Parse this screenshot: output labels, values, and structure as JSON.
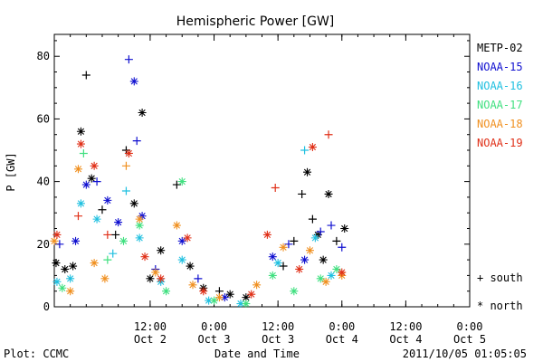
{
  "chart_data": {
    "type": "scatter",
    "title": "Hemispheric Power [GW]",
    "xlabel": "Date and Time",
    "ylabel": "P [GW]",
    "xlim": [
      "2011-10-01T18:00",
      "2011-10-05T00:00"
    ],
    "ylim": [
      0,
      87
    ],
    "yticks": [
      0,
      20,
      40,
      60,
      80
    ],
    "xticks": [
      {
        "time": "2011-10-02T12:00",
        "hour": "12:00",
        "date": "Oct 2"
      },
      {
        "time": "2011-10-03T00:00",
        "hour": "0:00",
        "date": "Oct 3"
      },
      {
        "time": "2011-10-03T12:00",
        "hour": "12:00",
        "date": "Oct 3"
      },
      {
        "time": "2011-10-04T00:00",
        "hour": "0:00",
        "date": "Oct 4"
      },
      {
        "time": "2011-10-04T12:00",
        "hour": "12:00",
        "date": "Oct 4"
      },
      {
        "time": "2011-10-05T00:00",
        "hour": "0:00",
        "date": "Oct 5"
      }
    ],
    "grid": false,
    "legend_position": "right",
    "marker_legend": {
      "south_symbol": "+",
      "south_label": "south",
      "north_symbol": "*",
      "north_label": "north"
    },
    "series": [
      {
        "name": "METP-02",
        "color": "#000000",
        "points": [
          {
            "t": "2011-10-01T18:20",
            "p": 14,
            "m": "north"
          },
          {
            "t": "2011-10-01T20:00",
            "p": 12,
            "m": "north"
          },
          {
            "t": "2011-10-01T21:30",
            "p": 13,
            "m": "north"
          },
          {
            "t": "2011-10-01T23:00",
            "p": 56,
            "m": "north"
          },
          {
            "t": "2011-10-02T00:00",
            "p": 74,
            "m": "south"
          },
          {
            "t": "2011-10-02T01:00",
            "p": 41,
            "m": "north"
          },
          {
            "t": "2011-10-02T03:00",
            "p": 31,
            "m": "south"
          },
          {
            "t": "2011-10-02T05:30",
            "p": 23,
            "m": "south"
          },
          {
            "t": "2011-10-02T07:30",
            "p": 50,
            "m": "south"
          },
          {
            "t": "2011-10-02T09:00",
            "p": 33,
            "m": "north"
          },
          {
            "t": "2011-10-02T10:30",
            "p": 62,
            "m": "north"
          },
          {
            "t": "2011-10-02T12:00",
            "p": 9,
            "m": "north"
          },
          {
            "t": "2011-10-02T14:00",
            "p": 18,
            "m": "north"
          },
          {
            "t": "2011-10-02T17:00",
            "p": 39,
            "m": "south"
          },
          {
            "t": "2011-10-02T19:30",
            "p": 13,
            "m": "north"
          },
          {
            "t": "2011-10-02T22:00",
            "p": 6,
            "m": "north"
          },
          {
            "t": "2011-10-03T01:00",
            "p": 5,
            "m": "south"
          },
          {
            "t": "2011-10-03T03:00",
            "p": 4,
            "m": "north"
          },
          {
            "t": "2011-10-03T06:00",
            "p": 3,
            "m": "north"
          },
          {
            "t": "2011-10-03T13:00",
            "p": 13,
            "m": "south"
          },
          {
            "t": "2011-10-03T15:00",
            "p": 21,
            "m": "south"
          },
          {
            "t": "2011-10-03T16:30",
            "p": 36,
            "m": "south"
          },
          {
            "t": "2011-10-03T17:30",
            "p": 43,
            "m": "north"
          },
          {
            "t": "2011-10-03T18:30",
            "p": 28,
            "m": "south"
          },
          {
            "t": "2011-10-03T19:30",
            "p": 23,
            "m": "north"
          },
          {
            "t": "2011-10-03T20:30",
            "p": 15,
            "m": "north"
          },
          {
            "t": "2011-10-03T21:30",
            "p": 36,
            "m": "north"
          },
          {
            "t": "2011-10-03T23:00",
            "p": 21,
            "m": "south"
          },
          {
            "t": "2011-10-04T00:30",
            "p": 25,
            "m": "north"
          }
        ]
      },
      {
        "name": "NOAA-15",
        "color": "#1010d0",
        "points": [
          {
            "t": "2011-10-01T19:00",
            "p": 20,
            "m": "south"
          },
          {
            "t": "2011-10-01T22:00",
            "p": 21,
            "m": "north"
          },
          {
            "t": "2011-10-02T00:00",
            "p": 39,
            "m": "north"
          },
          {
            "t": "2011-10-02T02:00",
            "p": 40,
            "m": "south"
          },
          {
            "t": "2011-10-02T04:00",
            "p": 34,
            "m": "north"
          },
          {
            "t": "2011-10-02T06:00",
            "p": 27,
            "m": "north"
          },
          {
            "t": "2011-10-02T08:00",
            "p": 79,
            "m": "south"
          },
          {
            "t": "2011-10-02T09:00",
            "p": 72,
            "m": "north"
          },
          {
            "t": "2011-10-02T09:30",
            "p": 53,
            "m": "south"
          },
          {
            "t": "2011-10-02T10:30",
            "p": 29,
            "m": "north"
          },
          {
            "t": "2011-10-02T13:00",
            "p": 12,
            "m": "south"
          },
          {
            "t": "2011-10-02T18:00",
            "p": 21,
            "m": "north"
          },
          {
            "t": "2011-10-02T21:00",
            "p": 9,
            "m": "south"
          },
          {
            "t": "2011-10-03T02:00",
            "p": 3,
            "m": "north"
          },
          {
            "t": "2011-10-03T11:00",
            "p": 16,
            "m": "north"
          },
          {
            "t": "2011-10-03T14:00",
            "p": 20,
            "m": "south"
          },
          {
            "t": "2011-10-03T17:00",
            "p": 15,
            "m": "north"
          },
          {
            "t": "2011-10-03T20:00",
            "p": 24,
            "m": "south"
          },
          {
            "t": "2011-10-03T22:00",
            "p": 26,
            "m": "south"
          },
          {
            "t": "2011-10-04T00:00",
            "p": 19,
            "m": "south"
          }
        ]
      },
      {
        "name": "NOAA-16",
        "color": "#20c0e0",
        "points": [
          {
            "t": "2011-10-01T18:30",
            "p": 8,
            "m": "north"
          },
          {
            "t": "2011-10-01T21:00",
            "p": 9,
            "m": "north"
          },
          {
            "t": "2011-10-01T23:00",
            "p": 33,
            "m": "north"
          },
          {
            "t": "2011-10-02T02:00",
            "p": 28,
            "m": "north"
          },
          {
            "t": "2011-10-02T05:00",
            "p": 17,
            "m": "south"
          },
          {
            "t": "2011-10-02T07:30",
            "p": 37,
            "m": "south"
          },
          {
            "t": "2011-10-02T10:00",
            "p": 22,
            "m": "north"
          },
          {
            "t": "2011-10-02T14:00",
            "p": 8,
            "m": "north"
          },
          {
            "t": "2011-10-02T18:00",
            "p": 15,
            "m": "north"
          },
          {
            "t": "2011-10-02T23:00",
            "p": 2,
            "m": "north"
          },
          {
            "t": "2011-10-03T05:00",
            "p": 1,
            "m": "north"
          },
          {
            "t": "2011-10-03T12:00",
            "p": 14,
            "m": "north"
          },
          {
            "t": "2011-10-03T17:00",
            "p": 50,
            "m": "south"
          },
          {
            "t": "2011-10-03T19:00",
            "p": 22,
            "m": "north"
          },
          {
            "t": "2011-10-03T22:00",
            "p": 10,
            "m": "north"
          }
        ]
      },
      {
        "name": "NOAA-17",
        "color": "#40e080",
        "points": [
          {
            "t": "2011-10-01T19:30",
            "p": 6,
            "m": "north"
          },
          {
            "t": "2011-10-01T23:30",
            "p": 49,
            "m": "south"
          },
          {
            "t": "2011-10-02T04:00",
            "p": 15,
            "m": "south"
          },
          {
            "t": "2011-10-02T07:00",
            "p": 21,
            "m": "north"
          },
          {
            "t": "2011-10-02T10:00",
            "p": 26,
            "m": "north"
          },
          {
            "t": "2011-10-02T15:00",
            "p": 5,
            "m": "north"
          },
          {
            "t": "2011-10-02T18:00",
            "p": 40,
            "m": "north"
          },
          {
            "t": "2011-10-03T00:00",
            "p": 2,
            "m": "north"
          },
          {
            "t": "2011-10-03T06:00",
            "p": 1,
            "m": "north"
          },
          {
            "t": "2011-10-03T11:00",
            "p": 10,
            "m": "north"
          },
          {
            "t": "2011-10-03T15:00",
            "p": 5,
            "m": "north"
          },
          {
            "t": "2011-10-03T20:00",
            "p": 9,
            "m": "north"
          },
          {
            "t": "2011-10-03T23:00",
            "p": 12,
            "m": "north"
          }
        ]
      },
      {
        "name": "NOAA-18",
        "color": "#f09020",
        "points": [
          {
            "t": "2011-10-01T18:00",
            "p": 21,
            "m": "north"
          },
          {
            "t": "2011-10-01T21:00",
            "p": 5,
            "m": "north"
          },
          {
            "t": "2011-10-01T22:30",
            "p": 44,
            "m": "north"
          },
          {
            "t": "2011-10-02T01:30",
            "p": 14,
            "m": "north"
          },
          {
            "t": "2011-10-02T03:30",
            "p": 9,
            "m": "north"
          },
          {
            "t": "2011-10-02T07:30",
            "p": 45,
            "m": "south"
          },
          {
            "t": "2011-10-02T10:00",
            "p": 28,
            "m": "north"
          },
          {
            "t": "2011-10-02T13:00",
            "p": 11,
            "m": "north"
          },
          {
            "t": "2011-10-02T17:00",
            "p": 26,
            "m": "north"
          },
          {
            "t": "2011-10-02T20:00",
            "p": 7,
            "m": "north"
          },
          {
            "t": "2011-10-03T01:00",
            "p": 3,
            "m": "north"
          },
          {
            "t": "2011-10-03T08:00",
            "p": 7,
            "m": "north"
          },
          {
            "t": "2011-10-03T13:00",
            "p": 19,
            "m": "north"
          },
          {
            "t": "2011-10-03T18:00",
            "p": 18,
            "m": "north"
          },
          {
            "t": "2011-10-03T21:00",
            "p": 8,
            "m": "north"
          },
          {
            "t": "2011-10-04T00:00",
            "p": 10,
            "m": "north"
          }
        ]
      },
      {
        "name": "NOAA-19",
        "color": "#e03018",
        "points": [
          {
            "t": "2011-10-01T18:30",
            "p": 23,
            "m": "north"
          },
          {
            "t": "2011-10-01T22:30",
            "p": 29,
            "m": "south"
          },
          {
            "t": "2011-10-01T23:00",
            "p": 52,
            "m": "north"
          },
          {
            "t": "2011-10-02T01:30",
            "p": 45,
            "m": "north"
          },
          {
            "t": "2011-10-02T04:00",
            "p": 23,
            "m": "south"
          },
          {
            "t": "2011-10-02T08:00",
            "p": 49,
            "m": "north"
          },
          {
            "t": "2011-10-02T11:00",
            "p": 16,
            "m": "north"
          },
          {
            "t": "2011-10-02T14:00",
            "p": 9,
            "m": "north"
          },
          {
            "t": "2011-10-02T19:00",
            "p": 22,
            "m": "north"
          },
          {
            "t": "2011-10-02T22:00",
            "p": 5,
            "m": "north"
          },
          {
            "t": "2011-10-03T07:00",
            "p": 4,
            "m": "north"
          },
          {
            "t": "2011-10-03T10:00",
            "p": 23,
            "m": "north"
          },
          {
            "t": "2011-10-03T11:30",
            "p": 38,
            "m": "south"
          },
          {
            "t": "2011-10-03T16:00",
            "p": 12,
            "m": "north"
          },
          {
            "t": "2011-10-03T18:30",
            "p": 51,
            "m": "north"
          },
          {
            "t": "2011-10-03T21:30",
            "p": 55,
            "m": "south"
          },
          {
            "t": "2011-10-04T00:00",
            "p": 11,
            "m": "north"
          }
        ]
      }
    ]
  },
  "footer": {
    "plot_credit": "Plot: CCMC",
    "timestamp": "2011/10/05 01:05:05"
  }
}
